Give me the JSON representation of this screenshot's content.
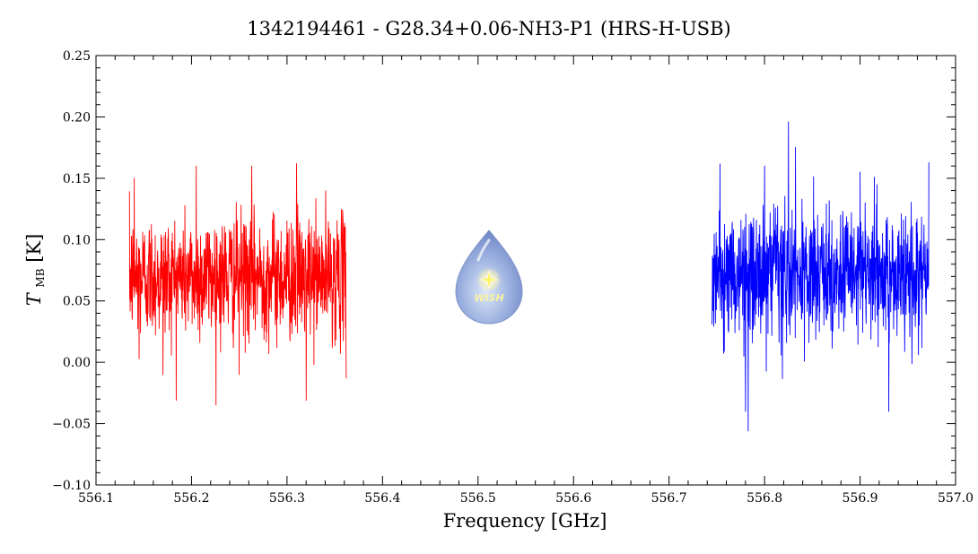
{
  "chart_data": {
    "type": "line",
    "title": "1342194461 - G28.34+0.06-NH3-P1 (HRS-H-USB)",
    "xlabel": "Frequency [GHz]",
    "ylabel_main": "T",
    "ylabel_sub": "MB",
    "ylabel_unit": "[K]",
    "xlim": [
      556.1,
      557.0
    ],
    "ylim": [
      -0.1,
      0.25
    ],
    "x_ticks": [
      "556.1",
      "556.2",
      "556.3",
      "556.4",
      "556.5",
      "556.6",
      "556.7",
      "556.8",
      "556.9",
      "557.0"
    ],
    "y_ticks": [
      "−0.10",
      "−0.05",
      "0.00",
      "0.05",
      "0.10",
      "0.15",
      "0.20",
      "0.25"
    ],
    "x_tick_values": [
      556.1,
      556.2,
      556.3,
      556.4,
      556.5,
      556.6,
      556.7,
      556.8,
      556.9,
      557.0
    ],
    "y_tick_values": [
      -0.1,
      -0.05,
      0.0,
      0.05,
      0.1,
      0.15,
      0.2,
      0.25
    ],
    "grid": false,
    "logo_text": "WISH",
    "series": [
      {
        "color": "#ff0000",
        "x_range": [
          556.135,
          556.362
        ],
        "mean": 0.07,
        "noise_sd": 0.025,
        "points": 900,
        "spikes": [
          [
            556.14,
            0.15
          ],
          [
            556.205,
            0.16
          ],
          [
            556.263,
            0.16
          ],
          [
            556.31,
            0.162
          ],
          [
            556.25,
            -0.01
          ],
          [
            556.32,
            -0.031
          ],
          [
            556.362,
            -0.013
          ],
          [
            556.145,
            0.003
          ],
          [
            556.17,
            -0.01
          ]
        ]
      },
      {
        "color": "#0000ff",
        "x_range": [
          556.745,
          556.972
        ],
        "mean": 0.07,
        "noise_sd": 0.026,
        "points": 900,
        "spikes": [
          [
            556.825,
            0.196
          ],
          [
            556.972,
            0.163
          ],
          [
            556.783,
            -0.056
          ],
          [
            556.78,
            -0.04
          ],
          [
            556.93,
            -0.04
          ],
          [
            556.8,
            0.16
          ],
          [
            556.9,
            0.155
          ]
        ]
      }
    ]
  }
}
